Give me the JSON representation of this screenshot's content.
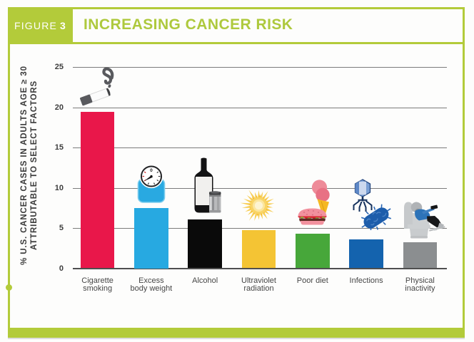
{
  "header": {
    "figure_word": "FIGURE",
    "figure_number": "3",
    "title": "INCREASING CANCER RISK"
  },
  "colors": {
    "accent_green": "#b3cb3a",
    "title_green": "#aec93d",
    "grid_gray": "#8b8b8b",
    "axis_text": "#3d3d3d"
  },
  "chart_data": {
    "type": "bar",
    "title": "INCREASING CANCER RISK",
    "ylabel_lines": [
      "% U.S. CANCER CASES IN ADULTS AGE ≥ 30",
      "ATTRIBUTABLE TO SELECT FACTORS"
    ],
    "ylabel": "% U.S. CANCER CASES IN ADULTS AGE ≥ 30 ATTRIBUTABLE TO SELECT FACTORS",
    "xlabel": "",
    "ylim": [
      0,
      25
    ],
    "yticks": [
      "0",
      "5",
      "10",
      "15",
      "20",
      "25"
    ],
    "grid": "horizontal",
    "legend": "none",
    "categories": [
      "Cigarette smoking",
      "Excess body weight",
      "Alcohol",
      "Ultraviolet radiation",
      "Poor diet",
      "Infections",
      "Physical inactivity"
    ],
    "category_label_lines": [
      [
        "Cigarette",
        "smoking"
      ],
      [
        "Excess",
        "body weight"
      ],
      [
        "Alcohol"
      ],
      [
        "Ultraviolet",
        "radiation"
      ],
      [
        "Poor diet"
      ],
      [
        "Infections"
      ],
      [
        "Physical",
        "inactivity"
      ]
    ],
    "values": [
      19.4,
      7.5,
      6.1,
      4.7,
      4.3,
      3.6,
      3.2
    ],
    "bar_colors": [
      "#e9174a",
      "#27a9e1",
      "#0a0a0a",
      "#f4c434",
      "#47a73a",
      "#1463ae",
      "#8b8e90"
    ],
    "icon_names": [
      "cigarette-icon",
      "scale-icon",
      "alcohol-icon",
      "sun-icon",
      "diet-icon",
      "infections-icon",
      "inactivity-icon"
    ]
  },
  "scale_dial_text": "0"
}
